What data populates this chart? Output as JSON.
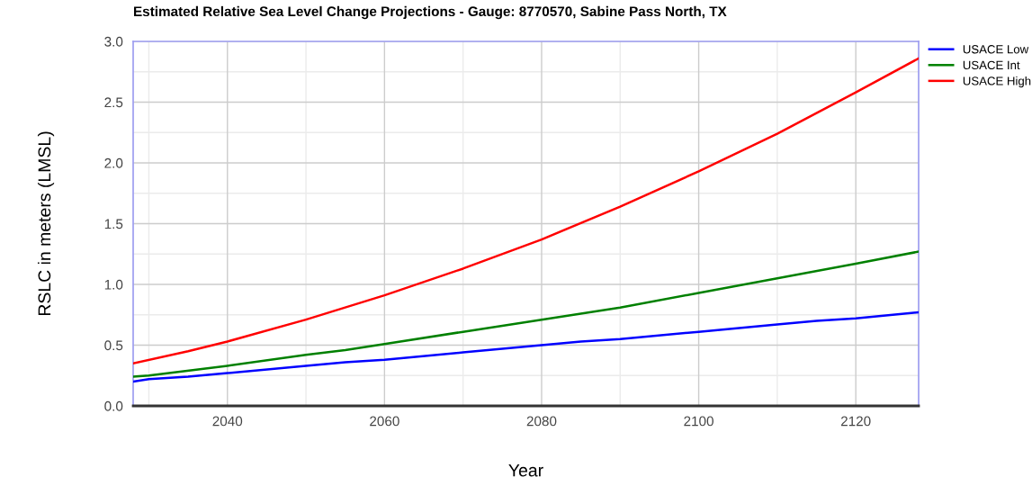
{
  "chart_data": {
    "type": "line",
    "title": "Estimated Relative Sea Level Change Projections - Gauge: 8770570, Sabine Pass North, TX",
    "xlabel": "Year",
    "ylabel": "RSLC in meters (LMSL)",
    "series": [
      {
        "name": "USACE Low",
        "color": "#0000ff",
        "x": [
          2028,
          2030,
          2035,
          2040,
          2050,
          2055,
          2060,
          2070,
          2080,
          2085,
          2090,
          2100,
          2110,
          2115,
          2120,
          2128
        ],
        "values": [
          0.2,
          0.22,
          0.24,
          0.27,
          0.33,
          0.36,
          0.38,
          0.44,
          0.5,
          0.53,
          0.55,
          0.61,
          0.67,
          0.7,
          0.72,
          0.77
        ]
      },
      {
        "name": "USACE Int",
        "color": "#008000",
        "x": [
          2028,
          2030,
          2040,
          2050,
          2055,
          2060,
          2070,
          2080,
          2090,
          2100,
          2110,
          2120,
          2128
        ],
        "values": [
          0.24,
          0.25,
          0.33,
          0.42,
          0.46,
          0.51,
          0.61,
          0.71,
          0.81,
          0.93,
          1.05,
          1.17,
          1.27
        ]
      },
      {
        "name": "USACE High",
        "color": "#ff0000",
        "x": [
          2028,
          2035,
          2040,
          2050,
          2060,
          2070,
          2080,
          2090,
          2100,
          2110,
          2120,
          2128
        ],
        "values": [
          0.35,
          0.45,
          0.53,
          0.71,
          0.91,
          1.13,
          1.37,
          1.64,
          1.93,
          2.24,
          2.58,
          2.86
        ]
      }
    ],
    "xlim": [
      2028,
      2128
    ],
    "xticks": [
      2040,
      2060,
      2080,
      2100,
      2120
    ],
    "ylim": [
      0,
      3
    ],
    "yticks": [
      {
        "value": 0,
        "label": "0.0"
      },
      {
        "value": 0.5,
        "label": "0.5"
      },
      {
        "value": 1,
        "label": "1.0"
      },
      {
        "value": 1.5,
        "label": "1.5"
      },
      {
        "value": 2,
        "label": "2.0"
      },
      {
        "value": 2.5,
        "label": "2.5"
      },
      {
        "value": 3,
        "label": "3.0"
      }
    ],
    "grid": true,
    "legend": "top right",
    "line_style": "solid",
    "marker": "none"
  }
}
